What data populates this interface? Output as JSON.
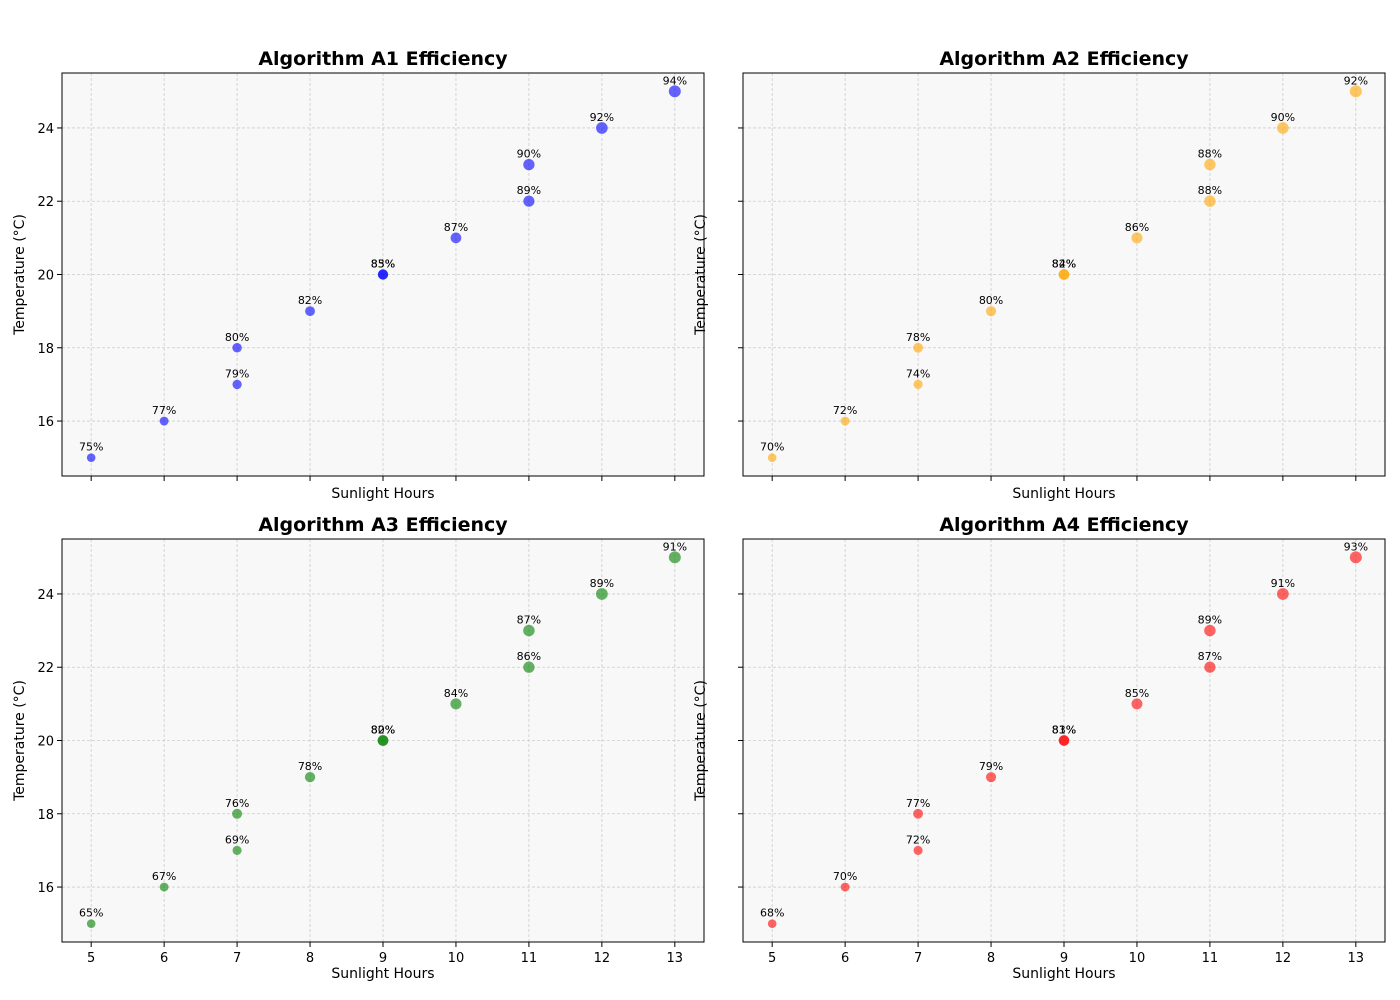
{
  "chart_data": [
    {
      "type": "scatter",
      "title": "Algorithm A1 Efficiency",
      "xlabel": "Sunlight Hours",
      "ylabel": "Temperature (°C)",
      "color": "#0000ff",
      "xlim": [
        4.6,
        13.4
      ],
      "ylim": [
        14.5,
        25.5
      ],
      "xticks": [
        5,
        6,
        7,
        8,
        9,
        10,
        11,
        12,
        13
      ],
      "yticks": [
        16,
        18,
        20,
        22,
        24
      ],
      "show_x_tick_labels": false,
      "show_y_tick_labels": true,
      "grid": true,
      "points": [
        {
          "x": 5,
          "y": 15,
          "label": "75%",
          "eff": 75
        },
        {
          "x": 6,
          "y": 16,
          "label": "77%",
          "eff": 77
        },
        {
          "x": 7,
          "y": 17,
          "label": "79%",
          "eff": 79
        },
        {
          "x": 7,
          "y": 18,
          "label": "80%",
          "eff": 80
        },
        {
          "x": 8,
          "y": 19,
          "label": "82%",
          "eff": 82
        },
        {
          "x": 9,
          "y": 20,
          "label": "85%",
          "eff": 85
        },
        {
          "x": 9,
          "y": 20,
          "label": "83%",
          "eff": 83
        },
        {
          "x": 10,
          "y": 21,
          "label": "87%",
          "eff": 87
        },
        {
          "x": 11,
          "y": 22,
          "label": "89%",
          "eff": 89
        },
        {
          "x": 11,
          "y": 23,
          "label": "90%",
          "eff": 90
        },
        {
          "x": 12,
          "y": 24,
          "label": "92%",
          "eff": 92
        },
        {
          "x": 13,
          "y": 25,
          "label": "94%",
          "eff": 94
        }
      ]
    },
    {
      "type": "scatter",
      "title": "Algorithm A2 Efficiency",
      "xlabel": "Sunlight Hours",
      "ylabel": "Temperature (°C)",
      "color": "#ffa500",
      "xlim": [
        4.6,
        13.4
      ],
      "ylim": [
        14.5,
        25.5
      ],
      "xticks": [
        5,
        6,
        7,
        8,
        9,
        10,
        11,
        12,
        13
      ],
      "yticks": [
        16,
        18,
        20,
        22,
        24
      ],
      "show_x_tick_labels": false,
      "show_y_tick_labels": false,
      "grid": true,
      "points": [
        {
          "x": 5,
          "y": 15,
          "label": "70%",
          "eff": 70
        },
        {
          "x": 6,
          "y": 16,
          "label": "72%",
          "eff": 72
        },
        {
          "x": 7,
          "y": 17,
          "label": "74%",
          "eff": 74
        },
        {
          "x": 7,
          "y": 18,
          "label": "78%",
          "eff": 78
        },
        {
          "x": 8,
          "y": 19,
          "label": "80%",
          "eff": 80
        },
        {
          "x": 9,
          "y": 20,
          "label": "82%",
          "eff": 82
        },
        {
          "x": 9,
          "y": 20,
          "label": "84%",
          "eff": 84
        },
        {
          "x": 10,
          "y": 21,
          "label": "86%",
          "eff": 86
        },
        {
          "x": 11,
          "y": 22,
          "label": "88%",
          "eff": 88
        },
        {
          "x": 11,
          "y": 23,
          "label": "88%",
          "eff": 88
        },
        {
          "x": 12,
          "y": 24,
          "label": "90%",
          "eff": 90
        },
        {
          "x": 13,
          "y": 25,
          "label": "92%",
          "eff": 92
        }
      ]
    },
    {
      "type": "scatter",
      "title": "Algorithm A3 Efficiency",
      "xlabel": "Sunlight Hours",
      "ylabel": "Temperature (°C)",
      "color": "#008000",
      "xlim": [
        4.6,
        13.4
      ],
      "ylim": [
        14.5,
        25.5
      ],
      "xticks": [
        5,
        6,
        7,
        8,
        9,
        10,
        11,
        12,
        13
      ],
      "yticks": [
        16,
        18,
        20,
        22,
        24
      ],
      "show_x_tick_labels": true,
      "show_y_tick_labels": true,
      "grid": true,
      "points": [
        {
          "x": 5,
          "y": 15,
          "label": "65%",
          "eff": 65
        },
        {
          "x": 6,
          "y": 16,
          "label": "67%",
          "eff": 67
        },
        {
          "x": 7,
          "y": 17,
          "label": "69%",
          "eff": 69
        },
        {
          "x": 7,
          "y": 18,
          "label": "76%",
          "eff": 76
        },
        {
          "x": 8,
          "y": 19,
          "label": "78%",
          "eff": 78
        },
        {
          "x": 9,
          "y": 20,
          "label": "80%",
          "eff": 80
        },
        {
          "x": 9,
          "y": 20,
          "label": "82%",
          "eff": 82
        },
        {
          "x": 10,
          "y": 21,
          "label": "84%",
          "eff": 84
        },
        {
          "x": 11,
          "y": 22,
          "label": "86%",
          "eff": 86
        },
        {
          "x": 11,
          "y": 23,
          "label": "87%",
          "eff": 87
        },
        {
          "x": 12,
          "y": 24,
          "label": "89%",
          "eff": 89
        },
        {
          "x": 13,
          "y": 25,
          "label": "91%",
          "eff": 91
        }
      ]
    },
    {
      "type": "scatter",
      "title": "Algorithm A4 Efficiency",
      "xlabel": "Sunlight Hours",
      "ylabel": "Temperature (°C)",
      "color": "#ff0000",
      "xlim": [
        4.6,
        13.4
      ],
      "ylim": [
        14.5,
        25.5
      ],
      "xticks": [
        5,
        6,
        7,
        8,
        9,
        10,
        11,
        12,
        13
      ],
      "yticks": [
        16,
        18,
        20,
        22,
        24
      ],
      "show_x_tick_labels": true,
      "show_y_tick_labels": false,
      "grid": true,
      "points": [
        {
          "x": 5,
          "y": 15,
          "label": "68%",
          "eff": 68
        },
        {
          "x": 6,
          "y": 16,
          "label": "70%",
          "eff": 70
        },
        {
          "x": 7,
          "y": 17,
          "label": "72%",
          "eff": 72
        },
        {
          "x": 7,
          "y": 18,
          "label": "77%",
          "eff": 77
        },
        {
          "x": 8,
          "y": 19,
          "label": "79%",
          "eff": 79
        },
        {
          "x": 9,
          "y": 20,
          "label": "81%",
          "eff": 81
        },
        {
          "x": 9,
          "y": 20,
          "label": "83%",
          "eff": 83
        },
        {
          "x": 10,
          "y": 21,
          "label": "85%",
          "eff": 85
        },
        {
          "x": 11,
          "y": 22,
          "label": "87%",
          "eff": 87
        },
        {
          "x": 11,
          "y": 23,
          "label": "89%",
          "eff": 89
        },
        {
          "x": 12,
          "y": 24,
          "label": "91%",
          "eff": 91
        },
        {
          "x": 13,
          "y": 25,
          "label": "93%",
          "eff": 93
        }
      ]
    }
  ]
}
